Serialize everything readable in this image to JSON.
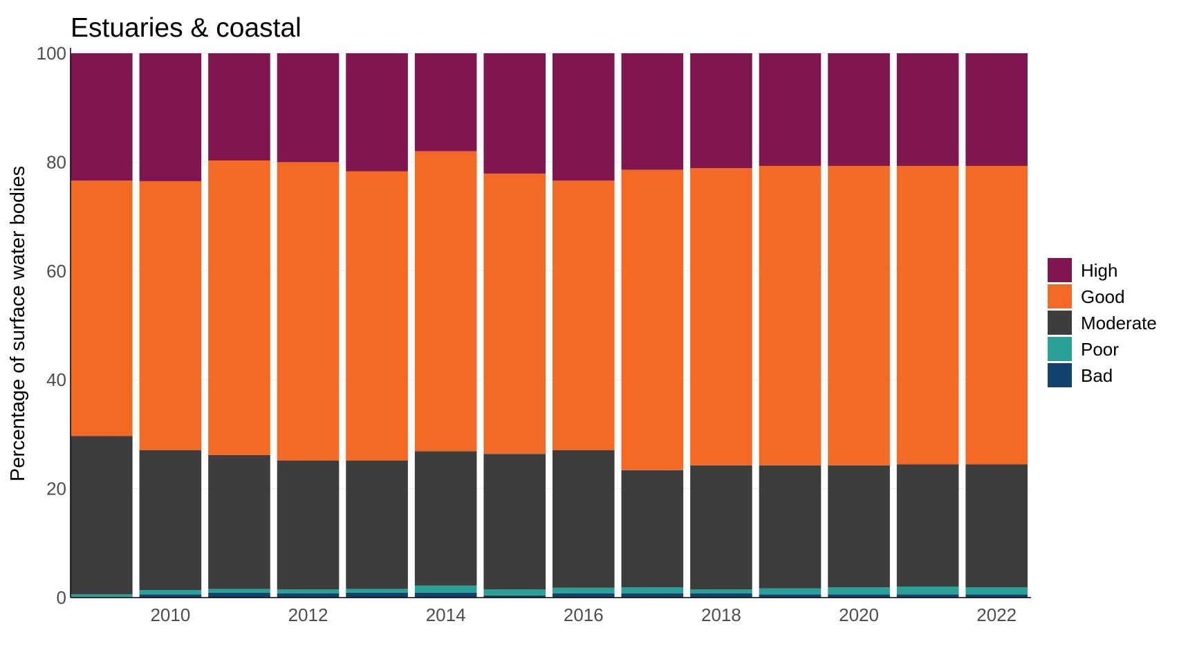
{
  "chart_data": {
    "type": "bar",
    "stacked": true,
    "title": "Estuaries & coastal",
    "xlabel": "",
    "ylabel": "Percentage of surface water bodies",
    "ylim": [
      0,
      100
    ],
    "yticks": [
      0,
      20,
      40,
      60,
      80,
      100
    ],
    "xticks": [
      2010,
      2012,
      2014,
      2016,
      2018,
      2020,
      2022
    ],
    "grid": true,
    "legend_position": "right",
    "categories": [
      2009,
      2010,
      2011,
      2012,
      2013,
      2014,
      2015,
      2016,
      2017,
      2018,
      2019,
      2020,
      2021,
      2022
    ],
    "series": [
      {
        "name": "Bad",
        "color": "#12436d",
        "values": [
          0.1,
          0.6,
          0.9,
          0.8,
          0.9,
          0.9,
          0.4,
          0.8,
          0.8,
          0.8,
          0.6,
          0.6,
          0.6,
          0.6
        ]
      },
      {
        "name": "Poor",
        "color": "#28a197",
        "values": [
          0.5,
          0.8,
          0.7,
          0.7,
          0.7,
          1.3,
          1.1,
          1.0,
          1.1,
          0.7,
          1.1,
          1.3,
          1.4,
          1.3
        ]
      },
      {
        "name": "Moderate",
        "color": "#3d3d3d",
        "values": [
          29.1,
          25.7,
          24.6,
          23.7,
          23.6,
          24.7,
          24.9,
          25.3,
          21.5,
          22.8,
          22.6,
          22.4,
          22.5,
          22.6
        ]
      },
      {
        "name": "Good",
        "color": "#f46a25",
        "values": [
          46.9,
          49.4,
          54.1,
          54.8,
          53.1,
          55.1,
          51.5,
          49.5,
          55.2,
          54.6,
          55.0,
          55.0,
          54.8,
          54.8
        ]
      },
      {
        "name": "High",
        "color": "#801650",
        "values": [
          23.4,
          23.5,
          19.7,
          20.0,
          21.7,
          18.0,
          22.1,
          23.4,
          21.4,
          21.1,
          20.7,
          20.7,
          20.7,
          20.7
        ]
      }
    ],
    "legend_order": [
      "High",
      "Good",
      "Moderate",
      "Poor",
      "Bad"
    ]
  }
}
